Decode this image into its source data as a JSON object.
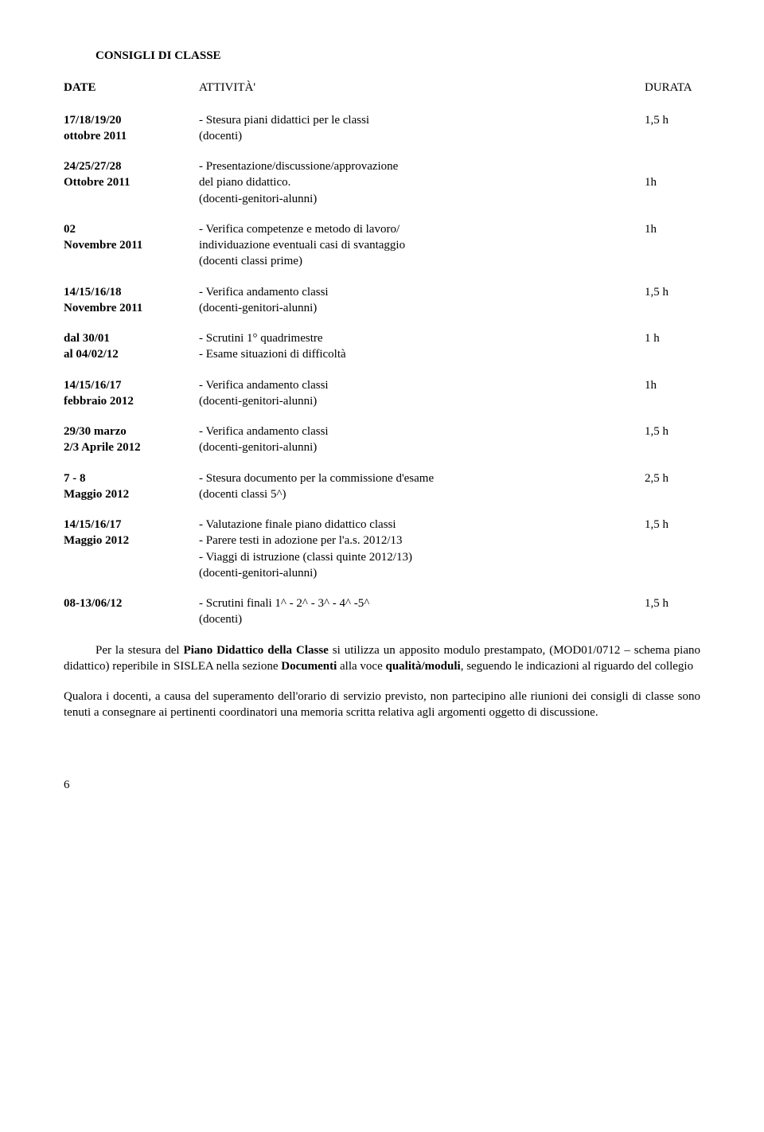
{
  "title": "CONSIGLI DI CLASSE",
  "header": {
    "date": "DATE",
    "activity": "ATTIVITÀ'",
    "duration": "DURATA"
  },
  "rows": [
    {
      "date_l1": "17/18/19/20",
      "date_l2": "ottobre 2011",
      "act_l1": "- Stesura piani didattici per le classi",
      "act_l2": "  (docenti)",
      "dur_l1": "1,5 h"
    },
    {
      "date_l1": "24/25/27/28",
      "date_l2": "Ottobre 2011",
      "act_l1": "- Presentazione/discussione/approvazione",
      "act_l2": "  del piano didattico.",
      "act_l3": "  (docenti-genitori-alunni)",
      "dur_l2": "1h"
    },
    {
      "date_l1": "02",
      "date_l2": "Novembre 2011",
      "act_l1": "- Verifica competenze e metodo di lavoro/",
      "act_l2": "  individuazione eventuali casi di svantaggio",
      "act_l3": "  (docenti classi prime)",
      "dur_l1": "1h"
    },
    {
      "date_l1": "14/15/16/18",
      "date_l2": "Novembre 2011",
      "act_l1": "- Verifica andamento classi",
      "act_l2": "  (docenti-genitori-alunni)",
      "dur_l1": "1,5 h"
    },
    {
      "date_l1": "dal 30/01",
      "date_l2": "al 04/02/12",
      "act_l1": "- Scrutini 1° quadrimestre",
      "act_l2": "- Esame situazioni di difficoltà",
      "dur_l1": "1 h"
    },
    {
      "date_l1": "14/15/16/17",
      "date_l2": "febbraio 2012",
      "act_l1": "- Verifica andamento classi",
      "act_l2": "  (docenti-genitori-alunni)",
      "dur_l1": "1h"
    },
    {
      "date_l1": "29/30 marzo",
      "date_l2": "2/3 Aprile 2012",
      "act_l1": "- Verifica andamento classi",
      "act_l2": "  (docenti-genitori-alunni)",
      "dur_l1": "1,5 h"
    },
    {
      "date_l1": "7 - 8",
      "date_l2": "Maggio 2012",
      "act_l1": "- Stesura documento per la commissione d'esame",
      "act_l2": "  (docenti classi 5^)",
      "dur_l1": "2,5 h"
    },
    {
      "date_l1": "14/15/16/17",
      "date_l2": "Maggio 2012",
      "act_l1": "- Valutazione finale piano didattico classi",
      "act_l2": "- Parere testi in adozione per l'a.s. 2012/13",
      "act_l3": "- Viaggi di istruzione (classi quinte 2012/13)",
      "act_l4": "  (docenti-genitori-alunni)",
      "dur_l1": "1,5 h"
    },
    {
      "date_l1": "08-13/06/12",
      "act_l1": "- Scrutini finali  1^ - 2^ - 3^ - 4^ -5^",
      "act_l2": "  (docenti)",
      "dur_l1": "1,5 h"
    }
  ],
  "p1_pre": "Per la stesura del ",
  "p1_b1": "Piano Didattico della Classe",
  "p1_mid": " si utilizza un apposito modulo prestampato, (MOD01/0712 – schema piano didattico) reperibile in SISLEA nella sezione ",
  "p1_b2": "Documenti",
  "p1_mid2": " alla voce ",
  "p1_b3": "qualità/moduli",
  "p1_post": ", seguendo le indicazioni al riguardo del collegio",
  "p2": "Qualora i docenti, a causa del superamento dell'orario di servizio previsto, non partecipino alle riunioni dei consigli di classe sono tenuti a consegnare ai pertinenti coordinatori una memoria scritta relativa agli argomenti oggetto di discussione.",
  "page_num": "6"
}
